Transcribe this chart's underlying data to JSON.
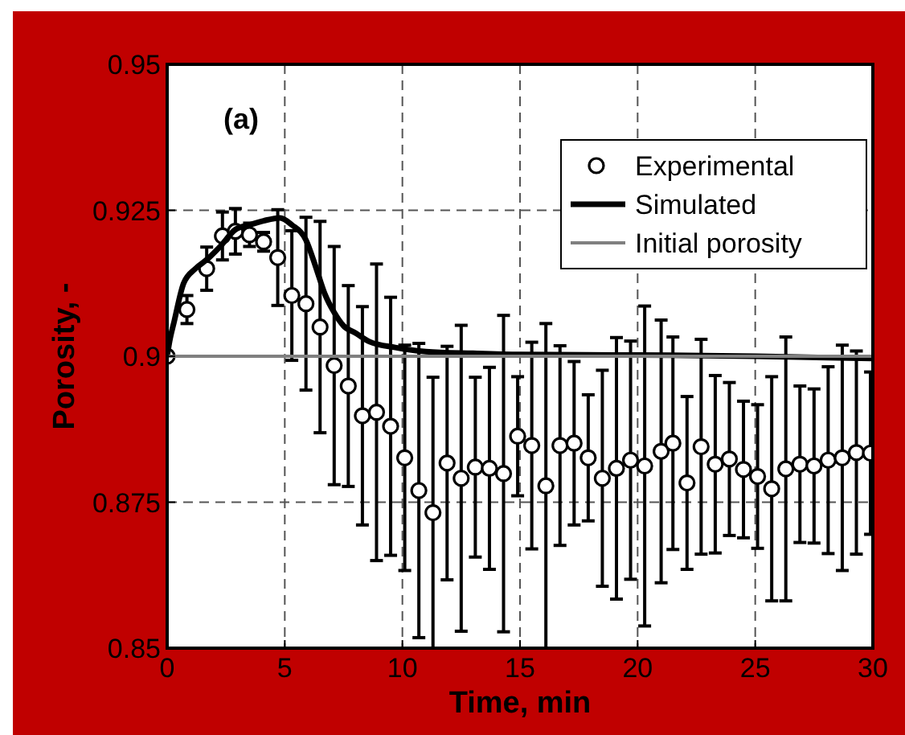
{
  "chart_data": {
    "type": "scatter",
    "xlabel": "Time, min",
    "ylabel": "Porosity, -",
    "annotations": [
      "(a)"
    ],
    "xlim": [
      0,
      30
    ],
    "xticks": [
      0,
      5,
      10,
      15,
      20,
      25,
      30
    ],
    "ylim": [
      0.85,
      0.95
    ],
    "yticks": [
      0.85,
      0.875,
      {
        "value": 0.9,
        "label": "0.9"
      },
      0.925,
      0.95
    ],
    "grid": true,
    "legend": "top right",
    "series": [
      {
        "name": "Experimental",
        "marker": "circle",
        "color": "#000000",
        "x": [
          0,
          0.84,
          1.68,
          2.35,
          2.9,
          3.5,
          4.1,
          4.7,
          5.3,
          5.9,
          6.5,
          7.1,
          7.7,
          8.3,
          8.9,
          9.5,
          10.1,
          10.7,
          11.3,
          11.9,
          12.5,
          13.1,
          13.7,
          14.3,
          14.9,
          15.5,
          16.1,
          16.7,
          17.3,
          17.9,
          18.5,
          19.1,
          19.7,
          20.3,
          21.0,
          21.5,
          22.1,
          22.7,
          23.3,
          23.9,
          24.5,
          25.1,
          25.7,
          26.3,
          26.9,
          27.5,
          28.1,
          28.7,
          29.3,
          29.9
        ],
        "values": [
          0.9,
          0.908,
          0.915,
          0.9206,
          0.9214,
          0.9208,
          0.9196,
          0.9169,
          0.9104,
          0.909,
          0.905,
          0.8984,
          0.8949,
          0.8898,
          0.8904,
          0.888,
          0.8826,
          0.877,
          0.8732,
          0.8817,
          0.8791,
          0.881,
          0.8808,
          0.8799,
          0.8863,
          0.8847,
          0.8778,
          0.8847,
          0.8851,
          0.8826,
          0.8791,
          0.8808,
          0.8822,
          0.8812,
          0.8837,
          0.8851,
          0.8783,
          0.8845,
          0.8815,
          0.8824,
          0.8806,
          0.8794,
          0.8773,
          0.8807,
          0.8815,
          0.8812,
          0.8822,
          0.8826,
          0.8835,
          0.8834
        ],
        "errors": [
          null,
          0.0024,
          0.0037,
          0.0041,
          0.0039,
          0.002,
          0.0016,
          0.0082,
          0.0111,
          0.0148,
          0.0181,
          0.0204,
          0.0172,
          0.0187,
          0.0254,
          0.0221,
          0.0193,
          0.0252,
          0.0232,
          0.02,
          0.0262,
          0.0154,
          0.0173,
          0.0271,
          0.0102,
          0.0177,
          0.0278,
          0.0171,
          0.014,
          0.0108,
          0.0185,
          0.0224,
          0.0204,
          0.0274,
          0.0225,
          0.0182,
          0.0148,
          0.0184,
          0.0152,
          0.0131,
          0.0117,
          0.0123,
          0.0192,
          0.0226,
          0.0134,
          0.0132,
          0.016,
          0.0193,
          0.0174,
          0.0139
        ]
      },
      {
        "name": "Simulated",
        "type": "line",
        "color": "#000000",
        "x": [
          0,
          0.1,
          0.3,
          0.7,
          1.2,
          1.7,
          2.3,
          2.9,
          3.5,
          4.1,
          4.8,
          5.3,
          5.9,
          6.3,
          6.7,
          7.1,
          7.5,
          8.0,
          8.6,
          9.7,
          11,
          13,
          15,
          20,
          25,
          30
        ],
        "values": [
          0.9,
          0.9025,
          0.906,
          0.9125,
          0.915,
          0.9166,
          0.919,
          0.9217,
          0.9225,
          0.9232,
          0.9237,
          0.9225,
          0.9199,
          0.9155,
          0.9107,
          0.9075,
          0.9052,
          0.904,
          0.9025,
          0.9015,
          0.9008,
          0.9005,
          0.9003,
          0.9002,
          0.9,
          0.8996
        ]
      },
      {
        "name": "Initial porosity",
        "type": "line",
        "color": "#808080",
        "x": [
          0,
          30
        ],
        "values": [
          0.9,
          0.9
        ]
      }
    ]
  }
}
